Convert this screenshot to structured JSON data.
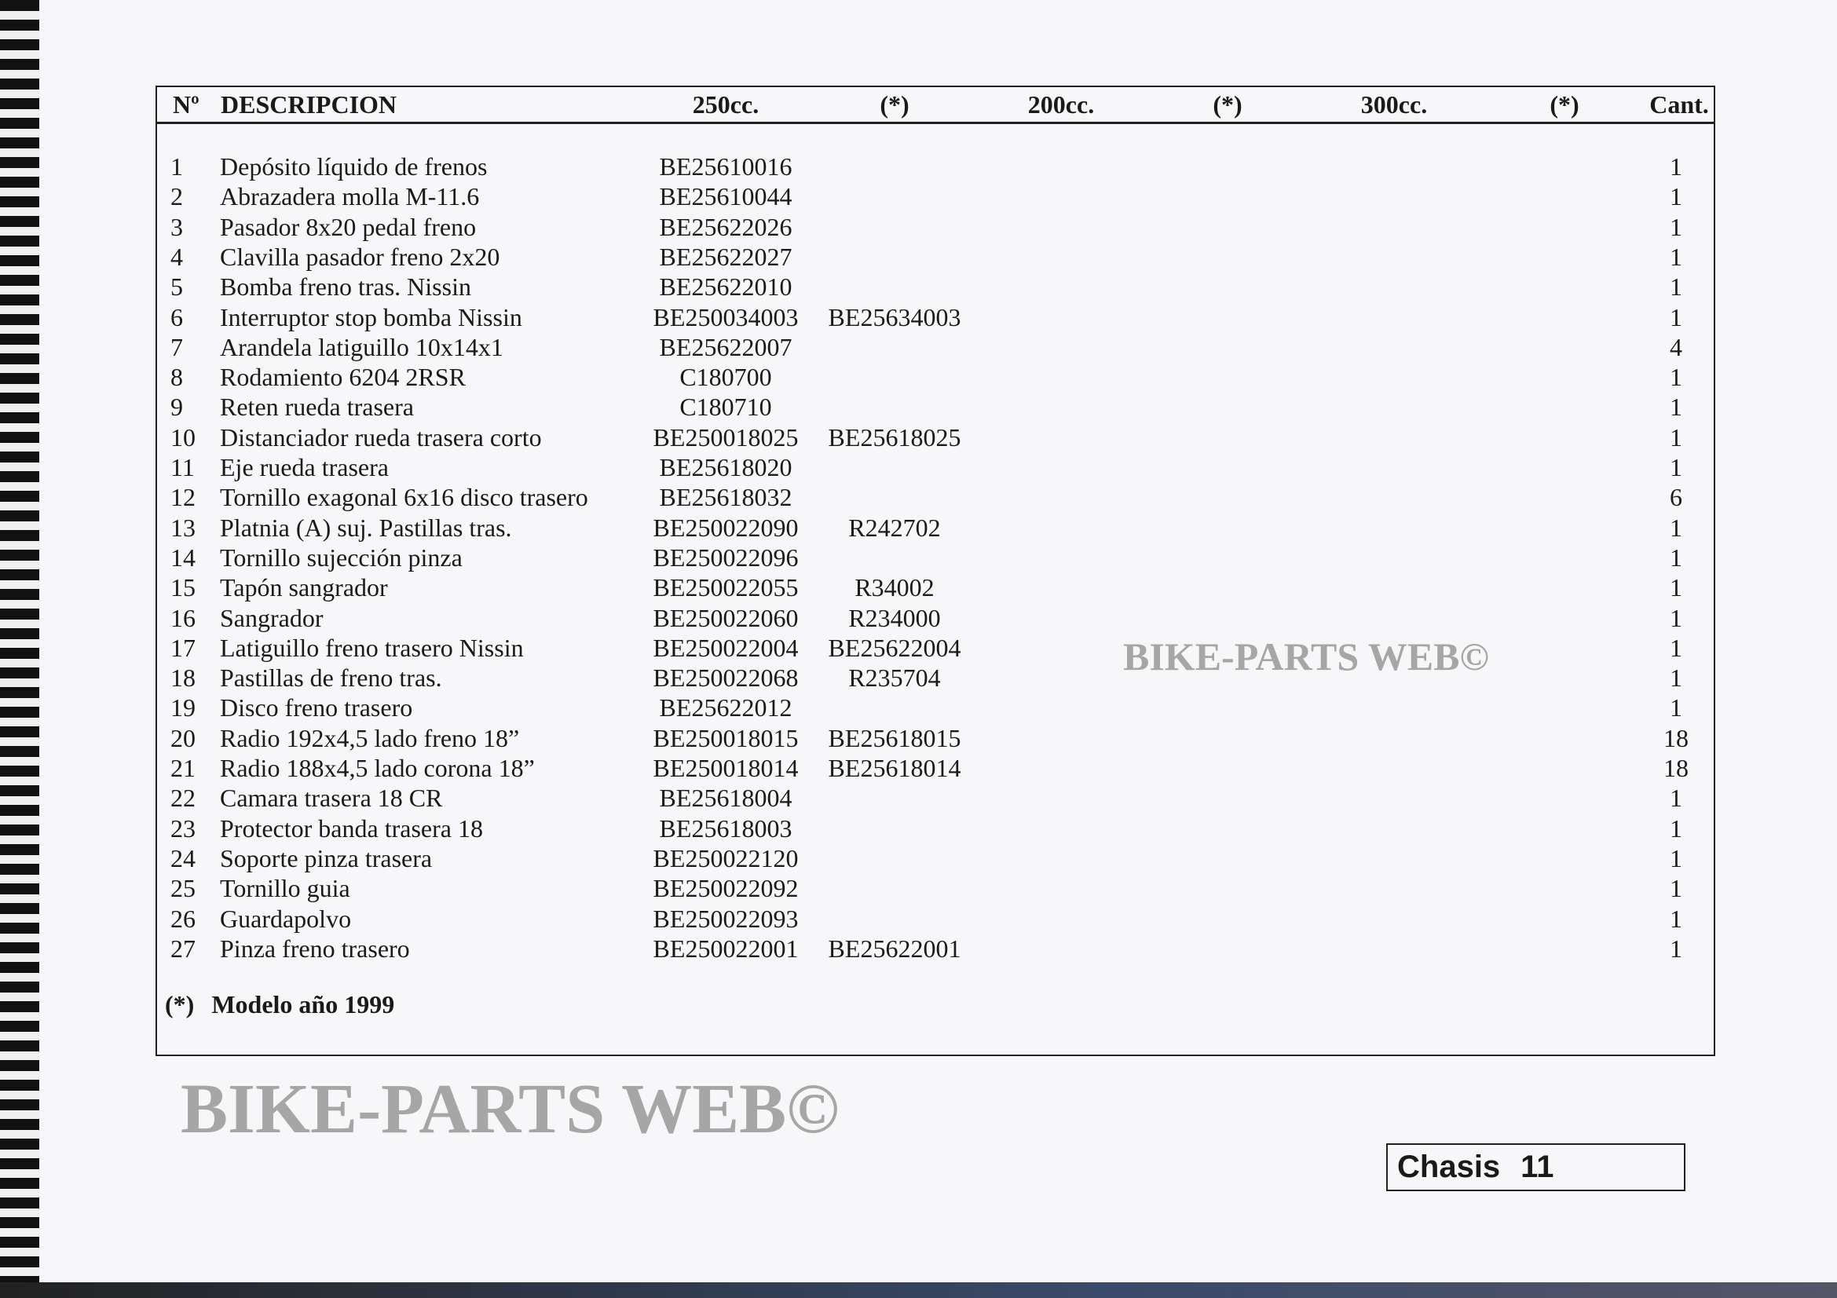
{
  "table": {
    "headers": {
      "num": "Nº",
      "description": "DESCRIPCION",
      "c250": "250cc.",
      "star1": "(*)",
      "c200": "200cc.",
      "star2": "(*)",
      "c300": "300cc.",
      "star3": "(*)",
      "qty": "Cant."
    },
    "rows": [
      {
        "n": "1",
        "desc": "Depósito líquido de frenos",
        "c250": "BE25610016",
        "alt": "",
        "qty": "1"
      },
      {
        "n": "2",
        "desc": "Abrazadera molla M-11.6",
        "c250": "BE25610044",
        "alt": "",
        "qty": "1"
      },
      {
        "n": "3",
        "desc": "Pasador 8x20 pedal freno",
        "c250": "BE25622026",
        "alt": "",
        "qty": "1"
      },
      {
        "n": "4",
        "desc": "Clavilla pasador freno 2x20",
        "c250": "BE25622027",
        "alt": "",
        "qty": "1"
      },
      {
        "n": "5",
        "desc": "Bomba freno tras. Nissin",
        "c250": "BE25622010",
        "alt": "",
        "qty": "1"
      },
      {
        "n": "6",
        "desc": "Interruptor stop bomba Nissin",
        "c250": "BE250034003",
        "alt": "BE25634003",
        "qty": "1"
      },
      {
        "n": "7",
        "desc": "Arandela latiguillo 10x14x1",
        "c250": "BE25622007",
        "alt": "",
        "qty": "4"
      },
      {
        "n": "8",
        "desc": "Rodamiento 6204 2RSR",
        "c250": "C180700",
        "alt": "",
        "qty": "1"
      },
      {
        "n": "9",
        "desc": "Reten rueda trasera",
        "c250": "C180710",
        "alt": "",
        "qty": "1"
      },
      {
        "n": "10",
        "desc": "Distanciador rueda trasera corto",
        "c250": "BE250018025",
        "alt": "BE25618025",
        "qty": "1"
      },
      {
        "n": "11",
        "desc": "Eje rueda trasera",
        "c250": "BE25618020",
        "alt": "",
        "qty": "1"
      },
      {
        "n": "12",
        "desc": "Tornillo exagonal 6x16 disco trasero",
        "c250": "BE25618032",
        "alt": "",
        "qty": "6"
      },
      {
        "n": "13",
        "desc": "Platnia (A) suj. Pastillas tras.",
        "c250": "BE250022090",
        "alt": "R242702",
        "qty": "1"
      },
      {
        "n": "14",
        "desc": "Tornillo sujección pinza",
        "c250": "BE250022096",
        "alt": "",
        "qty": "1"
      },
      {
        "n": "15",
        "desc": "Tapón sangrador",
        "c250": "BE250022055",
        "alt": "R34002",
        "qty": "1"
      },
      {
        "n": "16",
        "desc": "Sangrador",
        "c250": "BE250022060",
        "alt": "R234000",
        "qty": "1"
      },
      {
        "n": "17",
        "desc": "Latiguillo freno trasero Nissin",
        "c250": "BE250022004",
        "alt": "BE25622004",
        "qty": "1"
      },
      {
        "n": "18",
        "desc": "Pastillas de freno tras.",
        "c250": "BE250022068",
        "alt": "R235704",
        "qty": "1"
      },
      {
        "n": "19",
        "desc": "Disco freno trasero",
        "c250": "BE25622012",
        "alt": "",
        "qty": "1"
      },
      {
        "n": "20",
        "desc": "Radio 192x4,5 lado freno 18”",
        "c250": "BE250018015",
        "alt": "BE25618015",
        "qty": "18"
      },
      {
        "n": "21",
        "desc": "Radio 188x4,5 lado corona 18”",
        "c250": "BE250018014",
        "alt": "BE25618014",
        "qty": "18"
      },
      {
        "n": "22",
        "desc": "Camara trasera 18 CR",
        "c250": "BE25618004",
        "alt": "",
        "qty": "1"
      },
      {
        "n": "23",
        "desc": "Protector banda trasera 18",
        "c250": "BE25618003",
        "alt": "",
        "qty": "1"
      },
      {
        "n": "24",
        "desc": "Soporte pinza trasera",
        "c250": "BE250022120",
        "alt": "",
        "qty": "1"
      },
      {
        "n": "25",
        "desc": "Tornillo guia",
        "c250": "BE250022092",
        "alt": "",
        "qty": "1"
      },
      {
        "n": "26",
        "desc": "Guardapolvo",
        "c250": "BE250022093",
        "alt": "",
        "qty": "1"
      },
      {
        "n": "27",
        "desc": "Pinza freno trasero",
        "c250": "BE250022001",
        "alt": "BE25622001",
        "qty": "1"
      }
    ]
  },
  "footnote": {
    "mark": "(*)",
    "text": "Modelo año 1999"
  },
  "page_label": {
    "section": "Chasis",
    "number": "11"
  },
  "watermark": {
    "large": "BIKE-PARTS WEB©",
    "small": "BIKE-PARTS WEB©"
  }
}
